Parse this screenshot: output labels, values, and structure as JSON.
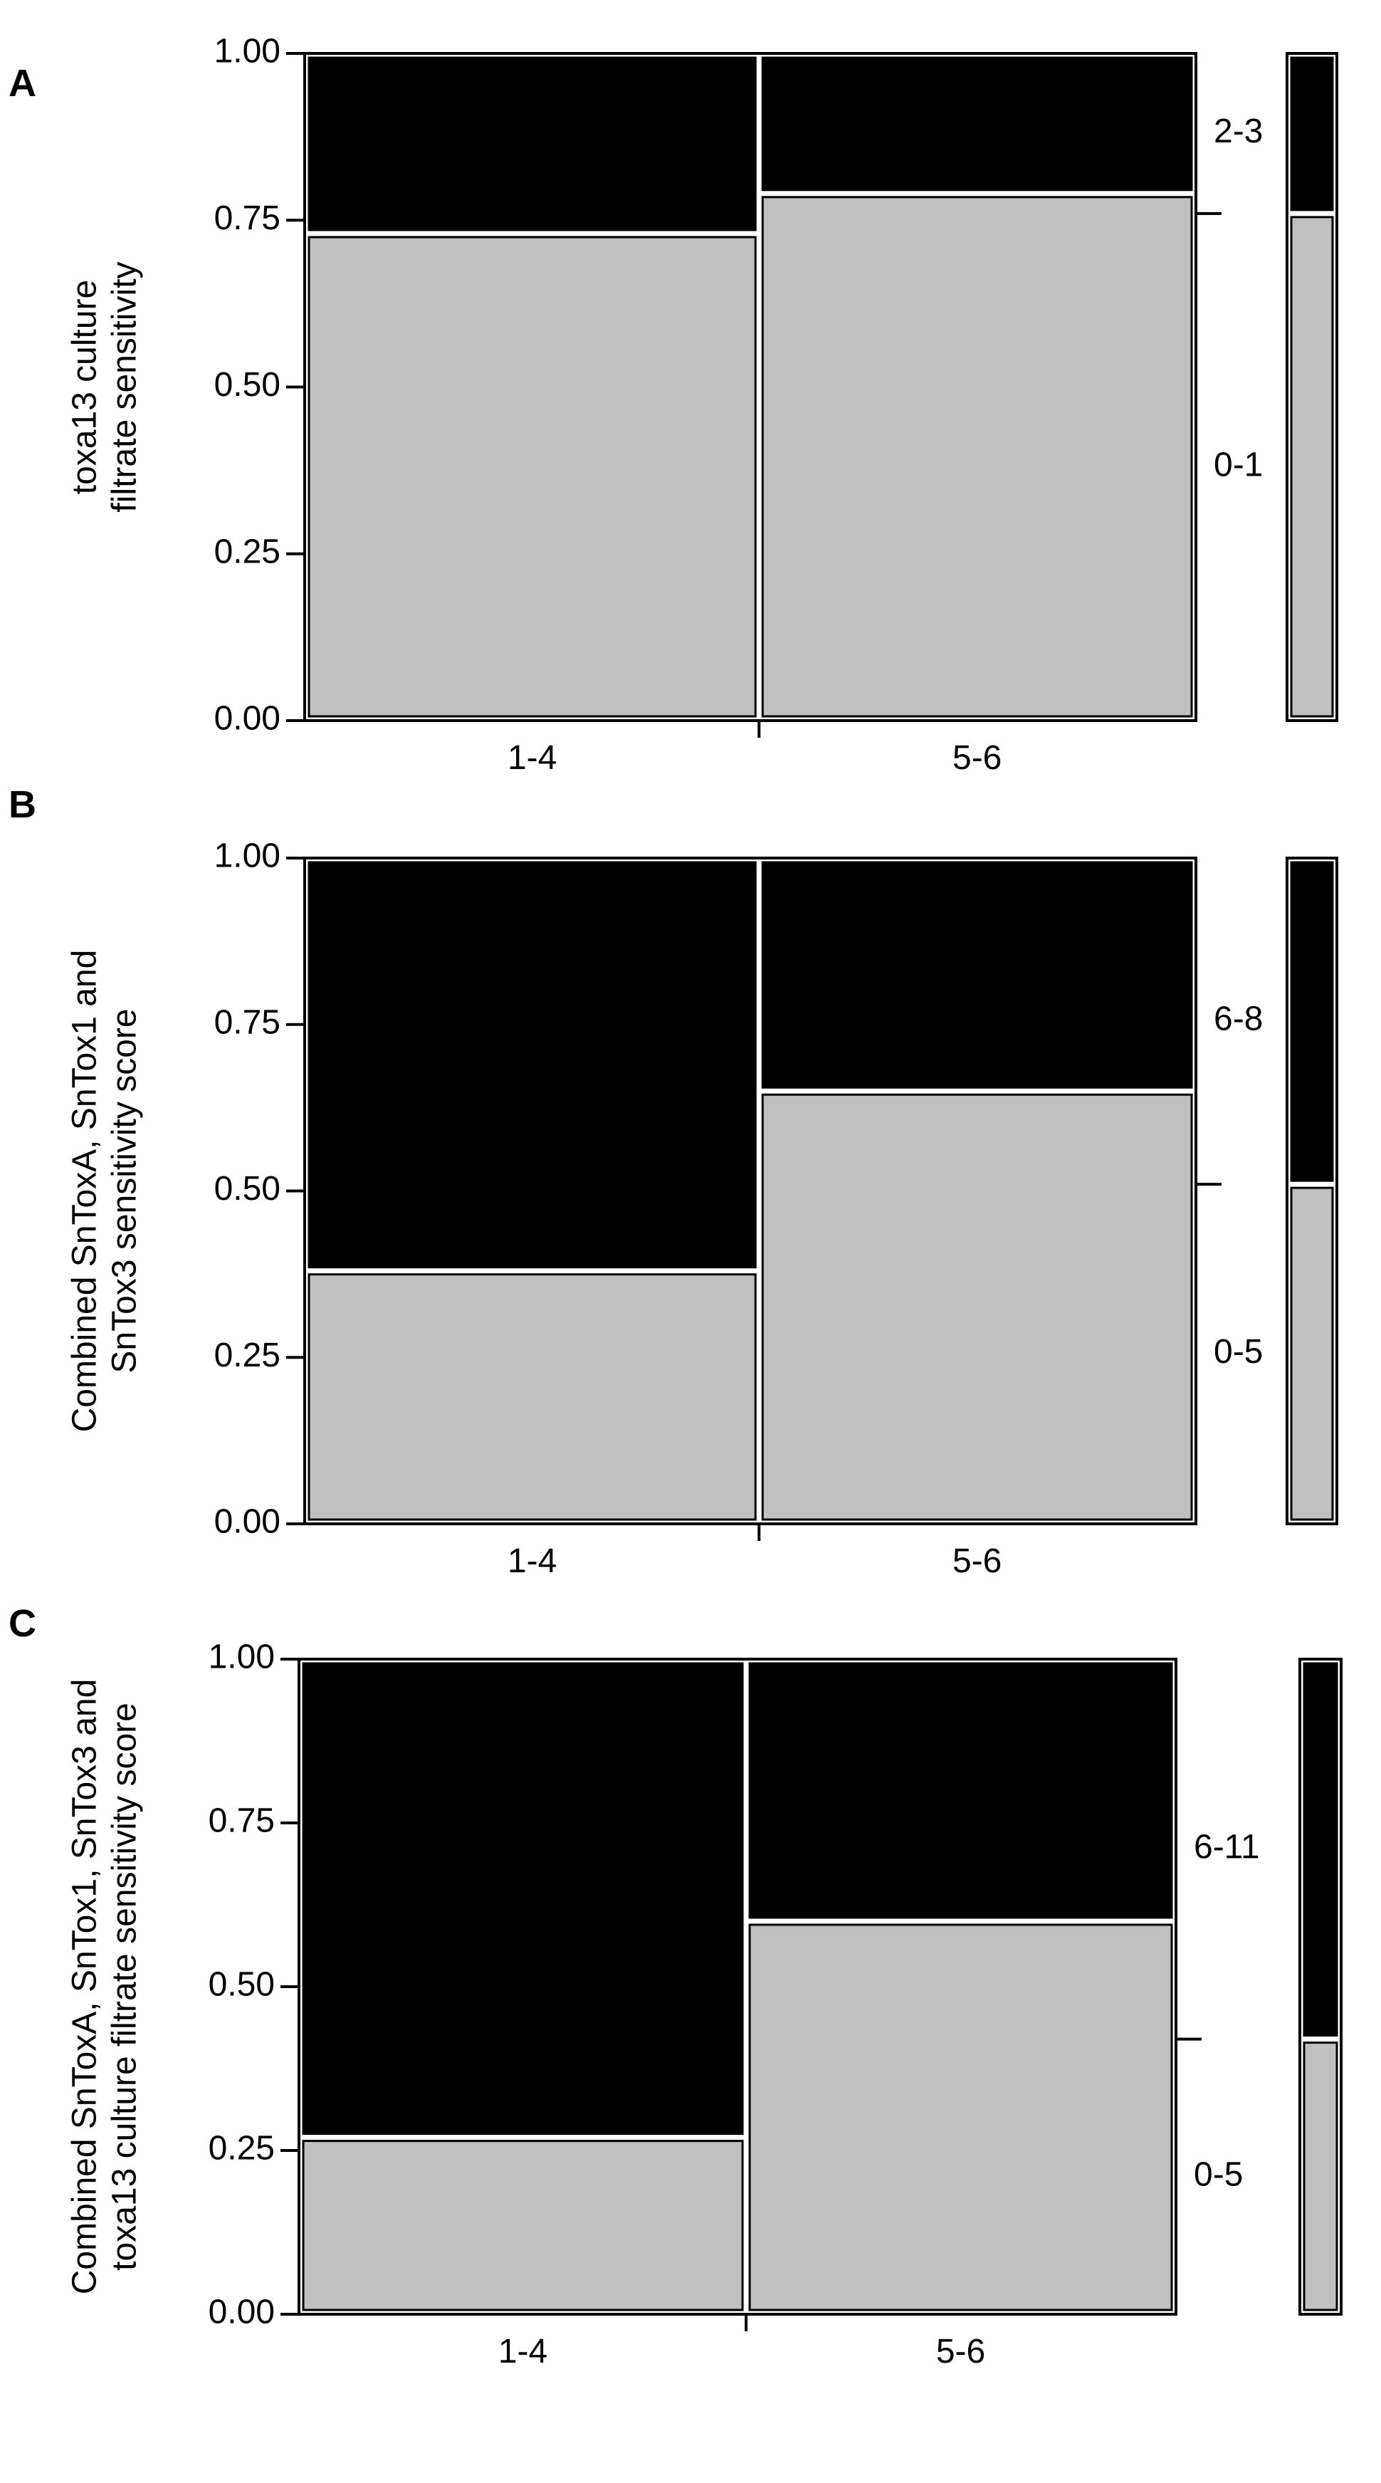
{
  "chart_data": [
    {
      "panel": "A",
      "type": "mosaic",
      "ylabel": [
        "toxa13 culture",
        "filtrate sensitivity"
      ],
      "xlabel": "",
      "ylim": [
        0,
        1
      ],
      "yticks": [
        "0.00",
        "0.25",
        "0.50",
        "0.75",
        "1.00"
      ],
      "categories": [
        "1-4",
        "5-6"
      ],
      "category_widths": [
        0.51,
        0.49
      ],
      "levels": [
        "0-1",
        "2-3"
      ],
      "series": [
        {
          "name": "0-1",
          "values": [
            0.73,
            0.79
          ]
        },
        {
          "name": "2-3",
          "values": [
            0.27,
            0.21
          ]
        }
      ],
      "marginal": [
        0.76,
        0.24
      ],
      "colors": {
        "0-1": "#c0c0c0",
        "2-3": "#000000"
      }
    },
    {
      "panel": "B",
      "type": "mosaic",
      "ylabel": [
        "Combined SnToxA, SnTox1 and",
        "SnTox3 sensitivity score"
      ],
      "xlabel": "",
      "ylim": [
        0,
        1
      ],
      "yticks": [
        "0.00",
        "0.25",
        "0.50",
        "0.75",
        "1.00"
      ],
      "categories": [
        "1-4",
        "5-6"
      ],
      "category_widths": [
        0.51,
        0.49
      ],
      "levels": [
        "0-5",
        "6-8"
      ],
      "series": [
        {
          "name": "0-5",
          "values": [
            0.38,
            0.65
          ]
        },
        {
          "name": "6-8",
          "values": [
            0.62,
            0.35
          ]
        }
      ],
      "marginal": [
        0.51,
        0.49
      ],
      "colors": {
        "0-5": "#c0c0c0",
        "6-8": "#000000"
      }
    },
    {
      "panel": "C",
      "type": "mosaic",
      "ylabel": [
        "Combined SnToxA, SnTox1, SnTox3 and",
        "toxa13 culture filtrate sensitivity score"
      ],
      "xlabel": "",
      "ylim": [
        0,
        1
      ],
      "yticks": [
        "0.00",
        "0.25",
        "0.50",
        "0.75",
        "1.00"
      ],
      "categories": [
        "1-4",
        "5-6"
      ],
      "category_widths": [
        0.51,
        0.49
      ],
      "levels": [
        "0-5",
        "6-11"
      ],
      "series": [
        {
          "name": "0-5",
          "values": [
            0.27,
            0.6
          ]
        },
        {
          "name": "6-11",
          "values": [
            0.73,
            0.4
          ]
        }
      ],
      "marginal": [
        0.42,
        0.58
      ],
      "colors": {
        "0-5": "#c0c0c0",
        "6-11": "#000000"
      }
    }
  ]
}
